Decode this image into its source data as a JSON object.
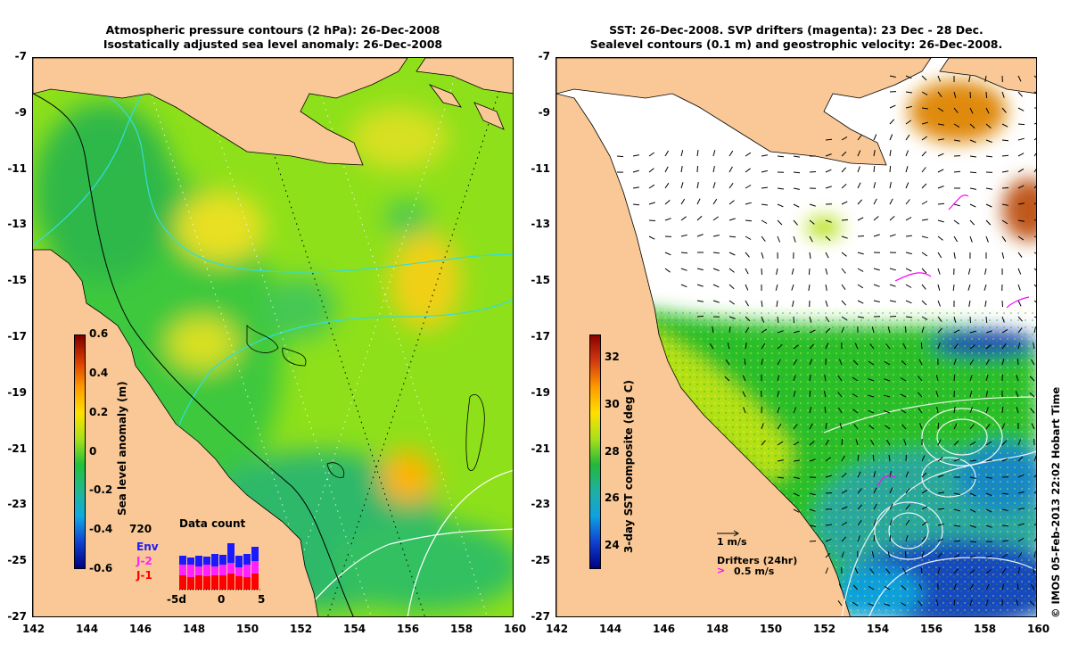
{
  "left_panel": {
    "title_line1": "Atmospheric pressure contours (2 hPa): 26-Dec-2008",
    "title_line2": "Isostatically adjusted sea level anomaly: 26-Dec-2008",
    "colorbar": {
      "title": "Sea level anomaly (m)",
      "ticks": [
        "0.6",
        "0.4",
        "0.2",
        "0",
        "-0.2",
        "-0.4",
        "-0.6"
      ],
      "range": [
        -0.6,
        0.6
      ]
    },
    "data_count": {
      "title": "Data count",
      "max_label": "720",
      "legend": [
        {
          "label": "Env",
          "color": "#1a1aff"
        },
        {
          "label": "J-2",
          "color": "#ff22ff"
        },
        {
          "label": "J-1",
          "color": "#ff0000"
        }
      ],
      "x_ticks": [
        "-5d",
        "0",
        "5"
      ]
    }
  },
  "right_panel": {
    "title_line1": "SST: 26-Dec-2008. SVP drifters (magenta): 23 Dec - 28 Dec.",
    "title_line2": "Sealevel contours (0.1 m) and geostrophic velocity: 26-Dec-2008.",
    "colorbar": {
      "title": "3-day SST composite (deg C)",
      "ticks": [
        "32",
        "30",
        "28",
        "26",
        "24"
      ],
      "range": [
        23,
        33
      ]
    },
    "velocity_key": "1 m/s",
    "drifter_key_title": "Drifters (24hr)",
    "drifter_key_label": "0.5 m/s"
  },
  "axes": {
    "lon_ticks": [
      "142",
      "144",
      "146",
      "148",
      "150",
      "152",
      "154",
      "156",
      "158",
      "160"
    ],
    "lat_ticks": [
      "-7",
      "-9",
      "-11",
      "-13",
      "-15",
      "-17",
      "-19",
      "-21",
      "-23",
      "-25",
      "-27"
    ],
    "lon_range": [
      142,
      160
    ],
    "lat_range": [
      -27,
      -7
    ]
  },
  "credit": "© IMOS 05-Feb-2013 22:02 Hobart Time",
  "colors": {
    "land": "#f9c896",
    "ocean_mid": "#33cc33",
    "contour_pressure": "#33dddd",
    "drifter": "#ff00ff"
  }
}
